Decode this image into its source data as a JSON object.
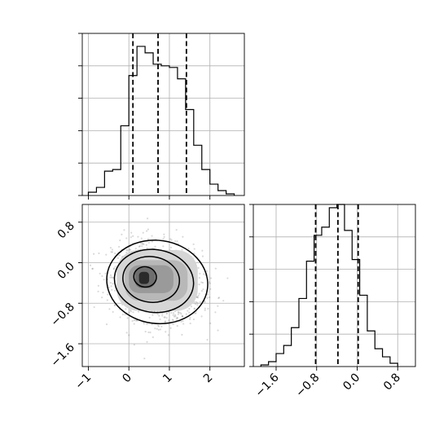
{
  "chart_data": [
    {
      "id": "hist_x",
      "type": "bar",
      "style": "step-histogram",
      "xlim": [
        -1.15,
        2.85
      ],
      "ylim": [
        0,
        1.0
      ],
      "bin_edges": [
        -1.0,
        -0.8,
        -0.6,
        -0.4,
        -0.2,
        0.0,
        0.2,
        0.4,
        0.6,
        0.8,
        1.0,
        1.2,
        1.4,
        1.6,
        1.8,
        2.0,
        2.2,
        2.4,
        2.6
      ],
      "counts": [
        0.02,
        0.05,
        0.15,
        0.16,
        0.43,
        0.74,
        0.92,
        0.88,
        0.81,
        0.8,
        0.79,
        0.72,
        0.53,
        0.31,
        0.16,
        0.07,
        0.03,
        0.01
      ],
      "quantiles": [
        0.1,
        0.72,
        1.42
      ],
      "grid": true,
      "xticks": [
        -1,
        0,
        1,
        2
      ],
      "show_tick_labels": false
    },
    {
      "id": "joint",
      "type": "scatter",
      "style": "2d-density-with-contours",
      "xlim": [
        -1.15,
        2.85
      ],
      "ylim": [
        -2.05,
        1.15
      ],
      "xticks": [
        -1,
        0,
        1,
        2
      ],
      "xtick_labels": [
        "−1",
        "0",
        "1",
        "2"
      ],
      "yticks": [
        0.8,
        0.0,
        -0.8,
        -1.6
      ],
      "ytick_labels": [
        "0.8",
        "0.0",
        "−0.8",
        "−1.6"
      ],
      "grid": true,
      "center": [
        0.7,
        -0.4
      ],
      "spread": [
        0.55,
        0.38
      ],
      "contour_levels": [
        {
          "cx": 0.7,
          "cy": -0.38,
          "rx": 1.25,
          "ry": 0.82
        },
        {
          "cx": 0.62,
          "cy": -0.36,
          "rx": 0.98,
          "ry": 0.62
        },
        {
          "cx": 0.55,
          "cy": -0.33,
          "rx": 0.7,
          "ry": 0.45
        },
        {
          "cx": 0.4,
          "cy": -0.28,
          "rx": 0.28,
          "ry": 0.2
        }
      ]
    },
    {
      "id": "hist_y",
      "type": "bar",
      "style": "step-histogram",
      "xlim": [
        -2.05,
        1.15
      ],
      "ylim": [
        0,
        1.0
      ],
      "bin_edges": [
        -1.9,
        -1.75,
        -1.6,
        -1.45,
        -1.3,
        -1.15,
        -1.0,
        -0.85,
        -0.7,
        -0.55,
        -0.4,
        -0.25,
        -0.1,
        0.05,
        0.2,
        0.35,
        0.5,
        0.65,
        0.8
      ],
      "counts": [
        0.01,
        0.03,
        0.08,
        0.13,
        0.24,
        0.42,
        0.65,
        0.81,
        0.86,
        0.98,
        1.0,
        0.84,
        0.66,
        0.44,
        0.22,
        0.11,
        0.06,
        0.02
      ],
      "quantiles": [
        -0.82,
        -0.38,
        0.02
      ],
      "grid": true,
      "xticks": [
        -1.6,
        -0.8,
        0.0,
        0.8
      ],
      "xtick_labels": [
        "−1.6",
        "−0.8",
        "0.0",
        "0.8"
      ]
    }
  ]
}
